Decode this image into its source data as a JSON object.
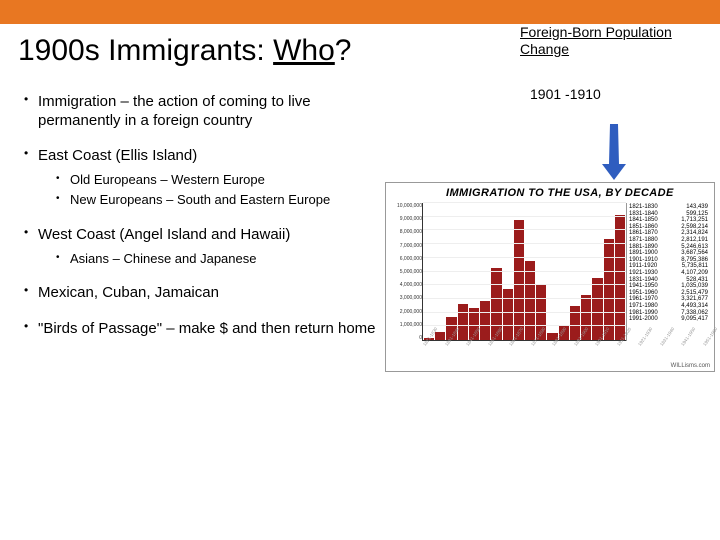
{
  "accent_color": "#e87722",
  "title_prefix": "1900s Immigrants: ",
  "title_who": "Who",
  "title_suffix": "?",
  "bullets": {
    "b1": "Immigration – the action of coming to live permanently in a foreign country",
    "b2": "East Coast (Ellis Island)",
    "b2_s1": "Old Europeans – Western Europe",
    "b2_s2": "New Europeans – South and Eastern Europe",
    "b3": "West Coast (Angel Island and Hawaii)",
    "b3_s1": "Asians – Chinese and Japanese",
    "b4": "Mexican, Cuban, Jamaican",
    "b5": "\"Birds of Passage\" – make $ and then return home"
  },
  "callout": {
    "title": "Foreign-Born Population Change",
    "decade": "1901 -1910",
    "arrow_color": "#2f5dbf"
  },
  "chart": {
    "title": "IMMIGRATION TO THE USA, BY DECADE",
    "bar_color": "#9b1c1c",
    "grid_color": "#eeeeee",
    "y_max": 10000000,
    "y_ticks": [
      "10,000,000",
      "9,000,000",
      "8,000,000",
      "7,000,000",
      "6,000,000",
      "5,000,000",
      "4,000,000",
      "3,000,000",
      "2,000,000",
      "1,000,000",
      "0"
    ],
    "decades": [
      {
        "label": "1821-1830",
        "value": 143439
      },
      {
        "label": "1831-1840",
        "value": 599125
      },
      {
        "label": "1841-1850",
        "value": 1713251
      },
      {
        "label": "1851-1860",
        "value": 2598214
      },
      {
        "label": "1861-1870",
        "value": 2314824
      },
      {
        "label": "1871-1880",
        "value": 2812191
      },
      {
        "label": "1881-1890",
        "value": 5246613
      },
      {
        "label": "1891-1900",
        "value": 3687564
      },
      {
        "label": "1901-1910",
        "value": 8795386
      },
      {
        "label": "1911-1920",
        "value": 5735811
      },
      {
        "label": "1921-1930",
        "value": 4107209
      },
      {
        "label": "1831-1940",
        "value": 528431
      },
      {
        "label": "1941-1950",
        "value": 1035039
      },
      {
        "label": "1951-1960",
        "value": 2515479
      },
      {
        "label": "1961-1970",
        "value": 3321677
      },
      {
        "label": "1971-1980",
        "value": 4493314
      },
      {
        "label": "1981-1990",
        "value": 7338062
      },
      {
        "label": "1991-2000",
        "value": 9095417
      }
    ],
    "credit": "WILLisms.com"
  }
}
